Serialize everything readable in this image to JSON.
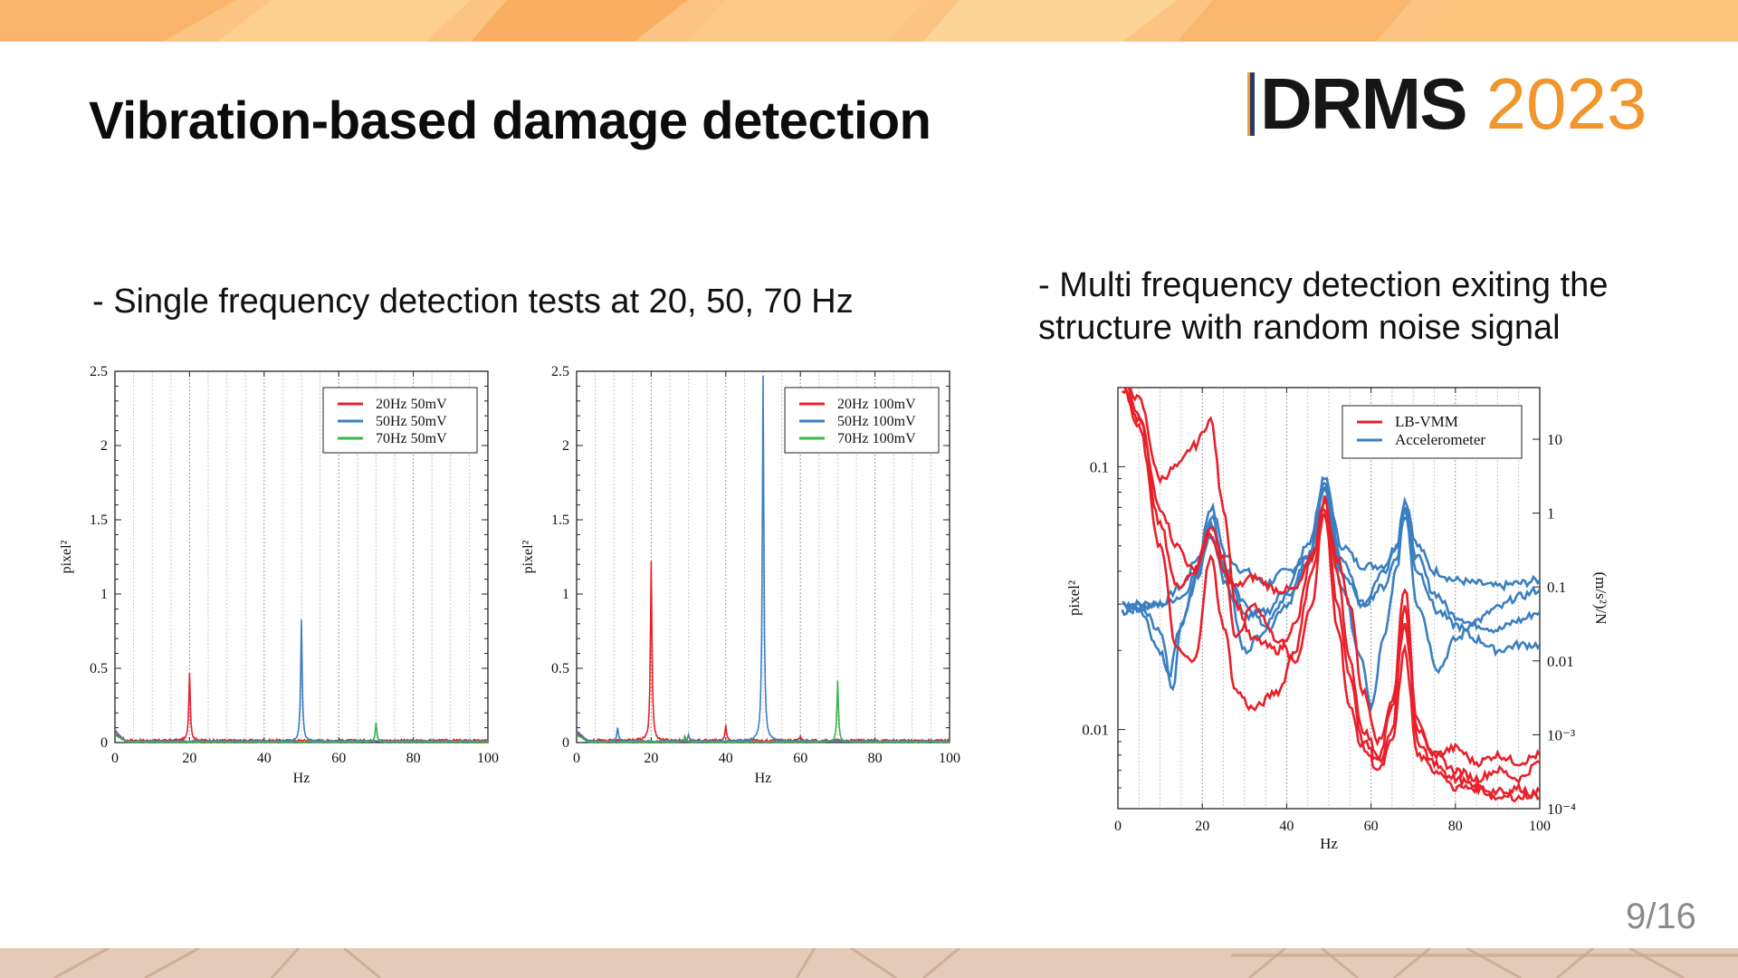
{
  "slide": {
    "title": "Vibration-based damage detection",
    "logo": {
      "word": "DRMS",
      "year": "2023",
      "accent_color": "#f0962d",
      "word_color": "#161616"
    },
    "bullet_left": "- Single frequency detection tests at 20, 50, 70 Hz",
    "bullet_right": "- Multi frequency detection exiting the structure with random noise signal",
    "page_number": "9/16",
    "band_colors": {
      "top": "#fbbf78",
      "bottom": "#e2c6b2"
    }
  },
  "chart_data": [
    {
      "type": "line",
      "xlabel": "Hz",
      "ylabel": "pixel²",
      "xlim": [
        0,
        100
      ],
      "ylim": [
        0,
        2.5
      ],
      "x_ticks": [
        "0",
        "20",
        "40",
        "60",
        "80",
        "100"
      ],
      "y_ticks": [
        "0",
        "0.5",
        "1",
        "1.5",
        "2",
        "2.5"
      ],
      "grid": "vertical dotted",
      "legend_position": "top-right",
      "series": [
        {
          "name": "20Hz 50mV",
          "color": "#e8202a",
          "noise": 0.015,
          "peaks": [
            {
              "x": 20,
              "y": 0.46
            }
          ]
        },
        {
          "name": "50Hz 50mV",
          "color": "#3a7fc1",
          "noise": 0.01,
          "peaks": [
            {
              "x": 50,
              "y": 0.82
            }
          ]
        },
        {
          "name": "70Hz 50mV",
          "color": "#3bb54a",
          "noise": 0.005,
          "peaks": [
            {
              "x": 70,
              "y": 0.13
            }
          ]
        }
      ]
    },
    {
      "type": "line",
      "xlabel": "Hz",
      "ylabel": "pixel²",
      "xlim": [
        0,
        100
      ],
      "ylim": [
        0,
        2.5
      ],
      "x_ticks": [
        "0",
        "20",
        "40",
        "60",
        "80",
        "100"
      ],
      "y_ticks": [
        "0",
        "0.5",
        "1",
        "1.5",
        "2",
        "2.5"
      ],
      "grid": "vertical dotted",
      "legend_position": "top-right",
      "series": [
        {
          "name": "20Hz 100mV",
          "color": "#e8202a",
          "noise": 0.015,
          "peaks": [
            {
              "x": 20,
              "y": 1.21
            },
            {
              "x": 40,
              "y": 0.1
            },
            {
              "x": 60,
              "y": 0.03
            }
          ]
        },
        {
          "name": "50Hz 100mV",
          "color": "#3a7fc1",
          "noise": 0.01,
          "peaks": [
            {
              "x": 50,
              "y": 2.46
            },
            {
              "x": 11,
              "y": 0.09
            },
            {
              "x": 30,
              "y": 0.04
            }
          ]
        },
        {
          "name": "70Hz 100mV",
          "color": "#3bb54a",
          "noise": 0.005,
          "peaks": [
            {
              "x": 70,
              "y": 0.41
            },
            {
              "x": 29,
              "y": 0.04
            }
          ]
        }
      ]
    },
    {
      "type": "line",
      "xlabel": "Hz",
      "ylabel": "pixel²",
      "y2label": "(m/s²)/N",
      "xlim": [
        0,
        100
      ],
      "y_scale": "log",
      "ylim": [
        0.005,
        0.2
      ],
      "y2lim": [
        0.0001,
        50
      ],
      "x_ticks": [
        "0",
        "20",
        "40",
        "60",
        "80",
        "100"
      ],
      "y_ticks": [
        {
          "v": 0.1,
          "label": "0.1"
        },
        {
          "v": 0.01,
          "label": "0.01"
        }
      ],
      "y2_ticks": [
        {
          "v": 10,
          "label": "10"
        },
        {
          "v": 1,
          "label": "1"
        },
        {
          "v": 0.1,
          "label": "0.1"
        },
        {
          "v": 0.01,
          "label": "0.01"
        },
        {
          "v": 0.001,
          "label": "10⁻³"
        },
        {
          "v": 0.0001,
          "label": "10⁻⁴"
        }
      ],
      "grid": "vertical dotted",
      "legend_position": "top-right",
      "series": [
        {
          "name": "LB-VMM",
          "color": "#e8202a",
          "curves": [
            {
              "x": [
                1,
                5,
                10,
                14,
                18,
                22,
                25,
                28,
                32,
                38,
                42,
                46,
                49,
                52,
                55,
                58,
                62,
                65,
                68,
                71,
                75,
                80,
                85,
                90,
                95,
                100
              ],
              "y": [
                0.22,
                0.18,
                0.09,
                0.1,
                0.12,
                0.15,
                0.07,
                0.03,
                0.022,
                0.02,
                0.025,
                0.045,
                0.075,
                0.04,
                0.018,
                0.01,
                0.008,
                0.012,
                0.035,
                0.01,
                0.008,
                0.0085,
                0.0075,
                0.008,
                0.0075,
                0.008
              ]
            },
            {
              "x": [
                1,
                5,
                10,
                14,
                18,
                22,
                25,
                28,
                32,
                38,
                42,
                46,
                49,
                52,
                55,
                58,
                62,
                65,
                68,
                71,
                75,
                80,
                85,
                90,
                95,
                100
              ],
              "y": [
                0.2,
                0.15,
                0.07,
                0.05,
                0.04,
                0.055,
                0.04,
                0.035,
                0.038,
                0.034,
                0.034,
                0.045,
                0.07,
                0.045,
                0.03,
                0.014,
                0.009,
                0.013,
                0.025,
                0.011,
                0.008,
                0.007,
                0.0065,
                0.007,
                0.0065,
                0.0075
              ]
            },
            {
              "x": [
                1,
                5,
                10,
                14,
                18,
                22,
                25,
                28,
                32,
                38,
                42,
                46,
                49,
                52,
                55,
                58,
                62,
                65,
                68,
                71,
                75,
                80,
                85,
                90,
                95,
                100
              ],
              "y": [
                0.22,
                0.16,
                0.06,
                0.035,
                0.04,
                0.06,
                0.045,
                0.022,
                0.03,
                0.022,
                0.018,
                0.03,
                0.075,
                0.03,
                0.016,
                0.009,
                0.0075,
                0.01,
                0.03,
                0.009,
                0.0075,
                0.006,
                0.006,
                0.0055,
                0.006,
                0.0055
              ]
            },
            {
              "x": [
                1,
                5,
                10,
                14,
                18,
                22,
                25,
                28,
                32,
                38,
                42,
                46,
                49,
                52,
                55,
                58,
                62,
                65,
                68,
                71,
                75,
                80,
                85,
                90,
                95,
                100
              ],
              "y": [
                0.2,
                0.14,
                0.05,
                0.02,
                0.018,
                0.045,
                0.025,
                0.014,
                0.012,
                0.014,
                0.02,
                0.04,
                0.065,
                0.025,
                0.012,
                0.0085,
                0.007,
                0.009,
                0.02,
                0.008,
                0.007,
                0.0065,
                0.006,
                0.0058,
                0.0055,
                0.0058
              ]
            }
          ]
        },
        {
          "name": "Accelerometer",
          "color": "#3a7fc1",
          "curves": [
            {
              "x": [
                1,
                5,
                10,
                15,
                19,
                22,
                26,
                30,
                35,
                40,
                45,
                49,
                53,
                58,
                63,
                66,
                68,
                71,
                75,
                80,
                85,
                90,
                95,
                100
              ],
              "y": [
                0.03,
                0.03,
                0.03,
                0.035,
                0.045,
                0.07,
                0.045,
                0.04,
                0.036,
                0.04,
                0.045,
                0.09,
                0.05,
                0.042,
                0.042,
                0.05,
                0.075,
                0.05,
                0.04,
                0.037,
                0.036,
                0.035,
                0.036,
                0.037
              ]
            },
            {
              "x": [
                1,
                5,
                10,
                15,
                19,
                22,
                26,
                30,
                35,
                40,
                45,
                49,
                53,
                58,
                63,
                66,
                68,
                71,
                75,
                80,
                85,
                90,
                95,
                100
              ],
              "y": [
                0.028,
                0.029,
                0.03,
                0.032,
                0.04,
                0.065,
                0.038,
                0.03,
                0.025,
                0.032,
                0.042,
                0.085,
                0.04,
                0.03,
                0.04,
                0.05,
                0.07,
                0.045,
                0.033,
                0.027,
                0.025,
                0.024,
                0.026,
                0.028
              ]
            },
            {
              "x": [
                1,
                5,
                10,
                12,
                15,
                19,
                22,
                26,
                30,
                35,
                40,
                45,
                49,
                53,
                58,
                60,
                63,
                66,
                68,
                71,
                76,
                80,
                85,
                90,
                95,
                100
              ],
              "y": [
                0.03,
                0.029,
                0.02,
                0.016,
                0.025,
                0.04,
                0.055,
                0.035,
                0.02,
                0.024,
                0.03,
                0.045,
                0.08,
                0.035,
                0.018,
                0.012,
                0.022,
                0.04,
                0.07,
                0.03,
                0.017,
                0.022,
                0.026,
                0.029,
                0.032,
                0.034
              ]
            },
            {
              "x": [
                1,
                5,
                10,
                13,
                15,
                19,
                22,
                26,
                30,
                35,
                40,
                45,
                49,
                53,
                58,
                63,
                66,
                68,
                71,
                76,
                80,
                85,
                90,
                95,
                100
              ],
              "y": [
                0.028,
                0.03,
                0.024,
                0.014,
                0.026,
                0.038,
                0.06,
                0.04,
                0.027,
                0.028,
                0.034,
                0.05,
                0.085,
                0.045,
                0.03,
                0.035,
                0.045,
                0.065,
                0.04,
                0.028,
                0.025,
                0.022,
                0.02,
                0.021,
                0.021
              ]
            }
          ]
        }
      ]
    }
  ]
}
